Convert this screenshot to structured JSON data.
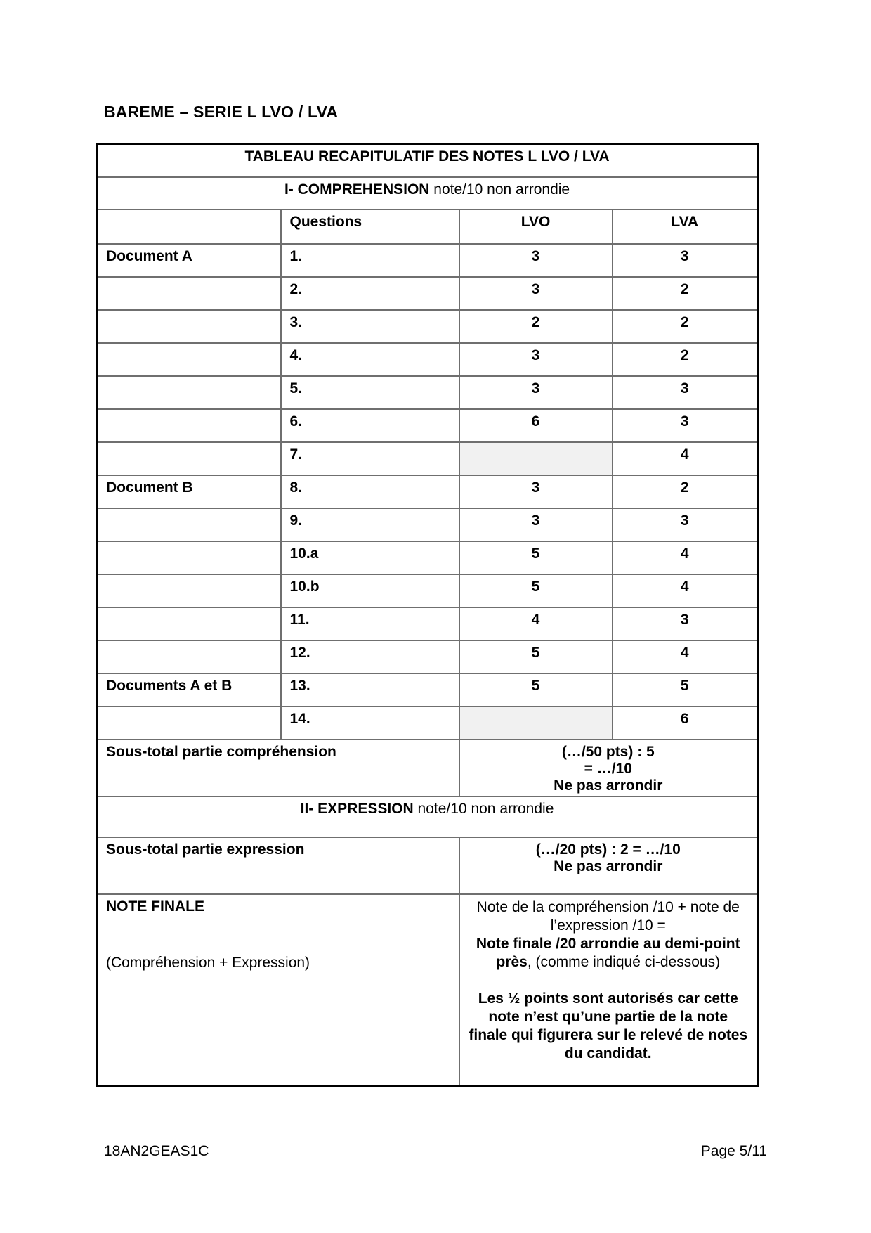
{
  "page": {
    "heading": "BAREME – SERIE L LVO / LVA",
    "footer_left": "18AN2GEAS1C",
    "footer_right": "Page 5/11"
  },
  "table": {
    "title": "TABLEAU RECAPITULATIF DES NOTES L LVO / LVA",
    "section1_bold": "I- COMPREHENSION",
    "section1_rest": " note/10 non arrondie",
    "headers": {
      "doc": "",
      "questions": "Questions",
      "lvo": "LVO",
      "lva": "LVA"
    },
    "rows": [
      {
        "doc": "Document A",
        "q": "1.",
        "lvo": "3",
        "lva": "3",
        "shaded": false
      },
      {
        "doc": "",
        "q": "2.",
        "lvo": "3",
        "lva": "2",
        "shaded": false
      },
      {
        "doc": "",
        "q": "3.",
        "lvo": "2",
        "lva": "2",
        "shaded": false
      },
      {
        "doc": "",
        "q": "4.",
        "lvo": "3",
        "lva": "2",
        "shaded": false
      },
      {
        "doc": "",
        "q": "5.",
        "lvo": "3",
        "lva": "3",
        "shaded": false
      },
      {
        "doc": "",
        "q": "6.",
        "lvo": "6",
        "lva": "3",
        "shaded": false
      },
      {
        "doc": "",
        "q": "7.",
        "lvo": "",
        "lva": "4",
        "shaded": true
      },
      {
        "doc": "Document B",
        "q": "8.",
        "lvo": "3",
        "lva": "2",
        "shaded": false
      },
      {
        "doc": "",
        "q": "9.",
        "lvo": "3",
        "lva": "3",
        "shaded": false
      },
      {
        "doc": "",
        "q": "10.a",
        "lvo": "5",
        "lva": "4",
        "shaded": false
      },
      {
        "doc": "",
        "q": "10.b",
        "lvo": "5",
        "lva": "4",
        "shaded": false
      },
      {
        "doc": "",
        "q": "11.",
        "lvo": "4",
        "lva": "3",
        "shaded": false
      },
      {
        "doc": "",
        "q": "12.",
        "lvo": "5",
        "lva": "4",
        "shaded": false
      },
      {
        "doc": "Documents A et B",
        "q": "13.",
        "lvo": "5",
        "lva": "5",
        "shaded": false
      },
      {
        "doc": "",
        "q": "14.",
        "lvo": "",
        "lva": "6",
        "shaded": true
      }
    ],
    "subtotal_comprehension": {
      "label": "Sous-total partie compréhension",
      "lines": [
        "(…/50 pts) : 5",
        "= …/10",
        "Ne pas arrondir"
      ]
    },
    "section2_bold": "II- EXPRESSION",
    "section2_rest": " note/10 non arrondie",
    "subtotal_expression": {
      "label": "Sous-total partie expression",
      "lines": [
        "(…/20 pts) : 2 = …/10",
        "Ne pas arrondir"
      ]
    },
    "final": {
      "label": "NOTE FINALE",
      "label_sub": "(Compréhension + Expression)",
      "desc_regular1": "Note de la compréhension /10 + note de l’expression /10 =",
      "desc_bold1": "Note finale /20 arrondie au demi-point près",
      "desc_regular2": ", (comme indiqué ci-dessous)",
      "desc_bold2": "Les ½ points sont autorisés car cette note n’est qu’une partie de la note finale qui figurera sur le relevé de notes du candidat."
    }
  },
  "colors": {
    "grid_line": "#6f6f6f",
    "outer_border": "#000000",
    "shaded_cell": "#f1f1f1",
    "page_background": "#ffffff"
  }
}
